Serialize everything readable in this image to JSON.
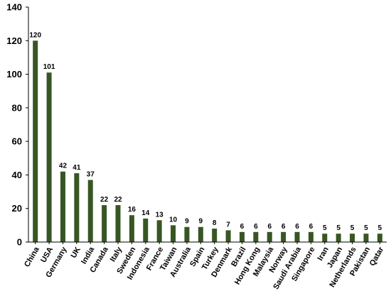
{
  "chart_data": {
    "type": "bar",
    "categories": [
      "China",
      "USA",
      "Germany",
      "UK",
      "India",
      "Canada",
      "Italy",
      "Sweden",
      "Indonesia",
      "France",
      "Taiwan",
      "Australia",
      "Spain",
      "Turkey",
      "Denmark",
      "Brazil",
      "Hong Kong",
      "Malaysia",
      "Norway",
      "Saudi Arabia",
      "Singapore",
      "Iran",
      "Japan",
      "Netherlands",
      "Pakistan",
      "Qatar"
    ],
    "values": [
      120,
      101,
      42,
      41,
      37,
      22,
      22,
      16,
      14,
      13,
      10,
      9,
      9,
      8,
      7,
      6,
      6,
      6,
      6,
      6,
      6,
      5,
      5,
      5,
      5,
      5
    ],
    "title": "",
    "xlabel": "",
    "ylabel": "",
    "ylim": [
      0,
      140
    ],
    "yticks": [
      0,
      20,
      40,
      60,
      80,
      100,
      120,
      140
    ],
    "grid": false,
    "data_labels": true,
    "bar_color": "#375623"
  }
}
